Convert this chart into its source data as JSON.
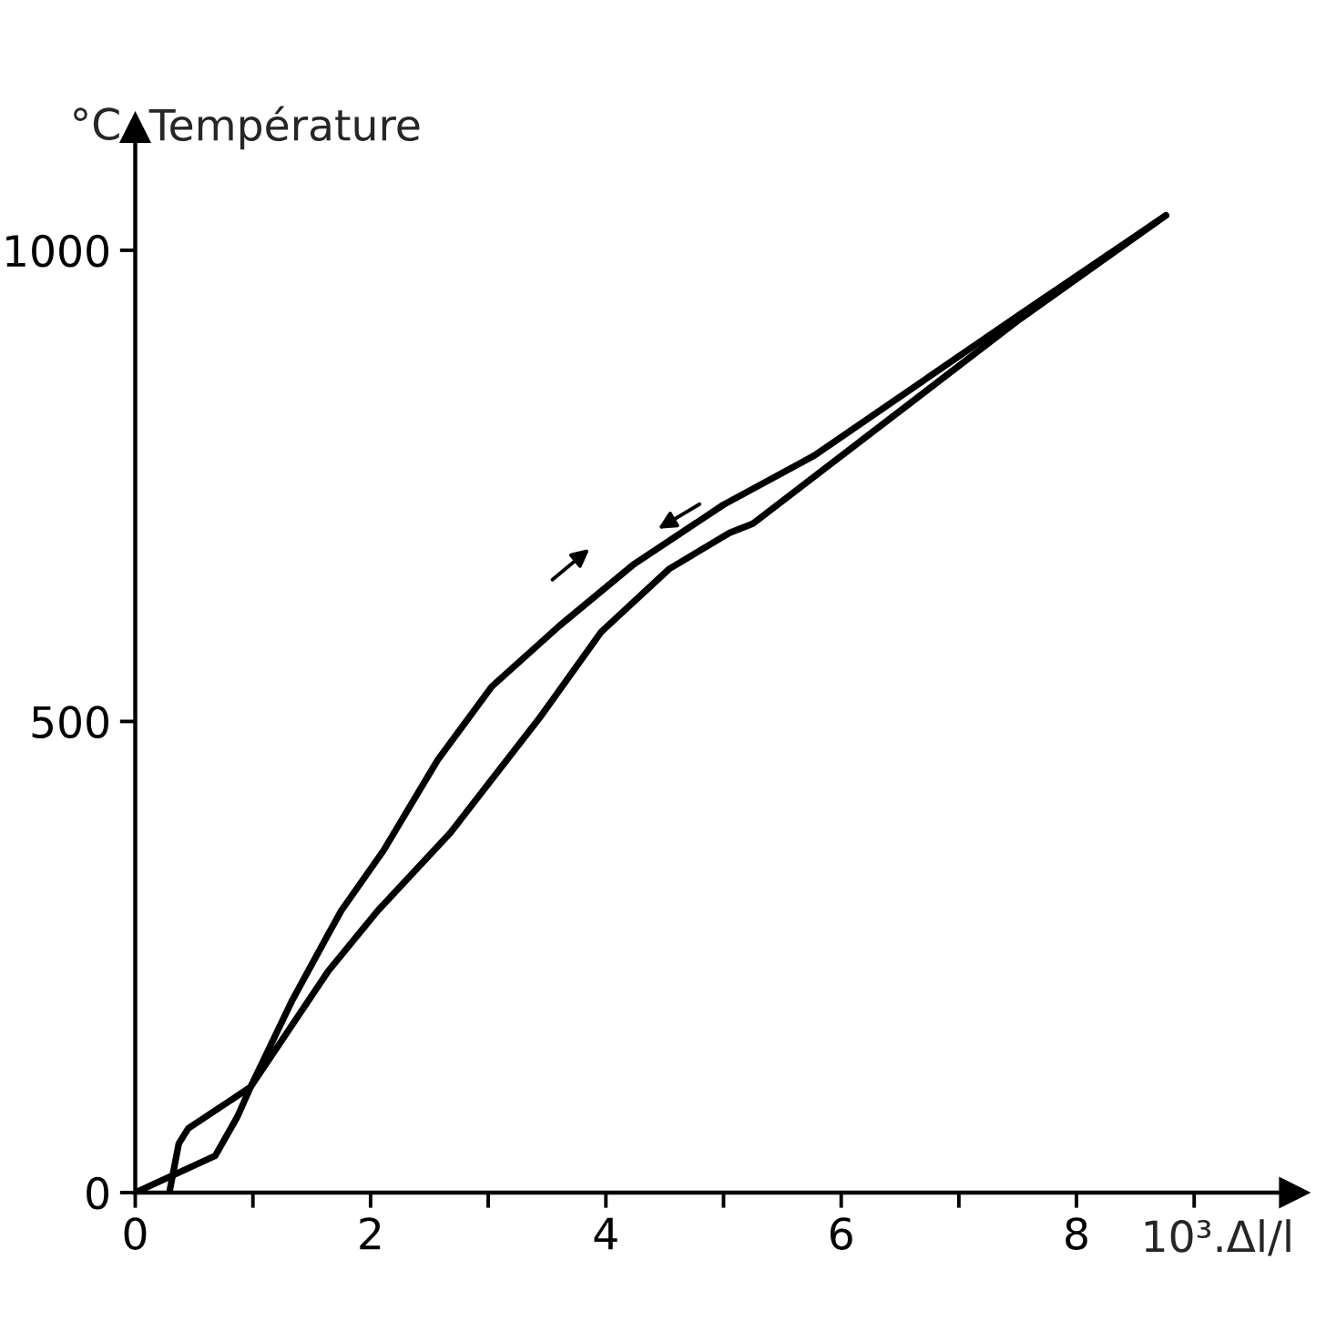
{
  "chart_data": {
    "type": "line",
    "title": "Température",
    "ylabel": "°C",
    "xlabel": "10³.Δl/l",
    "xlim": [
      0,
      9.85
    ],
    "ylim": [
      0,
      1130
    ],
    "xticks": [
      0,
      {
        "value": 1,
        "label": null
      },
      2,
      {
        "value": 3,
        "label": null
      },
      4,
      {
        "value": 5,
        "label": null
      },
      6,
      {
        "value": 7,
        "label": null
      },
      8,
      {
        "value": 9,
        "label": null
      }
    ],
    "yticks": [
      0,
      500,
      1000
    ],
    "grid": false,
    "legend": false,
    "marker": "none",
    "line_style": "solid",
    "series": [
      {
        "color": "#000000",
        "x": [
          0,
          0.68,
          0.87,
          0.98,
          1.33,
          1.64,
          1.75,
          2.11,
          2.57,
          3.03,
          3.61,
          4.23,
          5.0,
          5.77,
          7.52,
          8.76
        ],
        "values": [
          0,
          39,
          81,
          112,
          203,
          274,
          299,
          363,
          459,
          537,
          602,
          666,
          730,
          782,
          932,
          1037
        ]
      },
      {
        "color": "#000000",
        "x": [
          8.76,
          7.52,
          5.25,
          5.05,
          4.54,
          3.96,
          3.45,
          2.68,
          2.06,
          1.64,
          0.98,
          0.45,
          0.37,
          0.29
        ],
        "values": [
          1037,
          927,
          710,
          700,
          662,
          595,
          506,
          382,
          299,
          235,
          112,
          68,
          52,
          0
        ]
      }
    ]
  }
}
